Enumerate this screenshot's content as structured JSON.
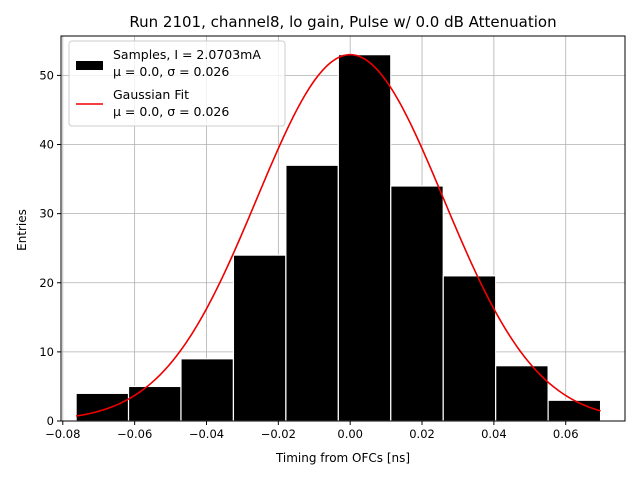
{
  "chart_data": {
    "type": "histogram",
    "title": "Run 2101, channel8, lo gain, Pulse w/ 0.0 dB Attenuation",
    "xlabel": "Timing from OFCs [ns]",
    "ylabel": "Entries",
    "xlim": [
      -0.0805,
      0.0765
    ],
    "ylim": [
      0,
      55.7
    ],
    "grid": true,
    "x_ticks": [
      -0.08,
      -0.06,
      -0.04,
      -0.02,
      0.0,
      0.02,
      0.04,
      0.06
    ],
    "x_tick_labels": [
      "−0.08",
      "−0.06",
      "−0.04",
      "−0.02",
      "0.00",
      "0.02",
      "0.04",
      "0.06"
    ],
    "y_ticks": [
      0,
      10,
      20,
      30,
      40,
      50
    ],
    "y_tick_labels": [
      "0",
      "10",
      "20",
      "30",
      "40",
      "50"
    ],
    "bins": {
      "edges": [
        -0.0763,
        -0.0617,
        -0.0471,
        -0.0325,
        -0.0179,
        -0.0033,
        0.0113,
        0.0259,
        0.0405,
        0.0551,
        0.0697
      ],
      "counts": [
        4,
        5,
        9,
        24,
        37,
        53,
        34,
        21,
        8,
        3
      ],
      "color": "#000000",
      "edgecolor": "#ffffff"
    },
    "fit": {
      "amplitude": 53,
      "mu": 0.0,
      "sigma": 0.026,
      "x_range": [
        -0.0763,
        0.0697
      ],
      "color": "#ee0000"
    },
    "legend": {
      "placement": "top-left",
      "entries": [
        {
          "line1": "Samples, I = 2.0703mA",
          "line2_prefix": "μ = 0.0, ",
          "line2_suffix": "σ = 0.026",
          "marker": "patch",
          "color": "#000000"
        },
        {
          "line1": "Gaussian Fit",
          "line2_prefix": "μ = 0.0, ",
          "line2_suffix": "σ = 0.026",
          "marker": "line",
          "color": "#ee0000"
        }
      ]
    }
  }
}
